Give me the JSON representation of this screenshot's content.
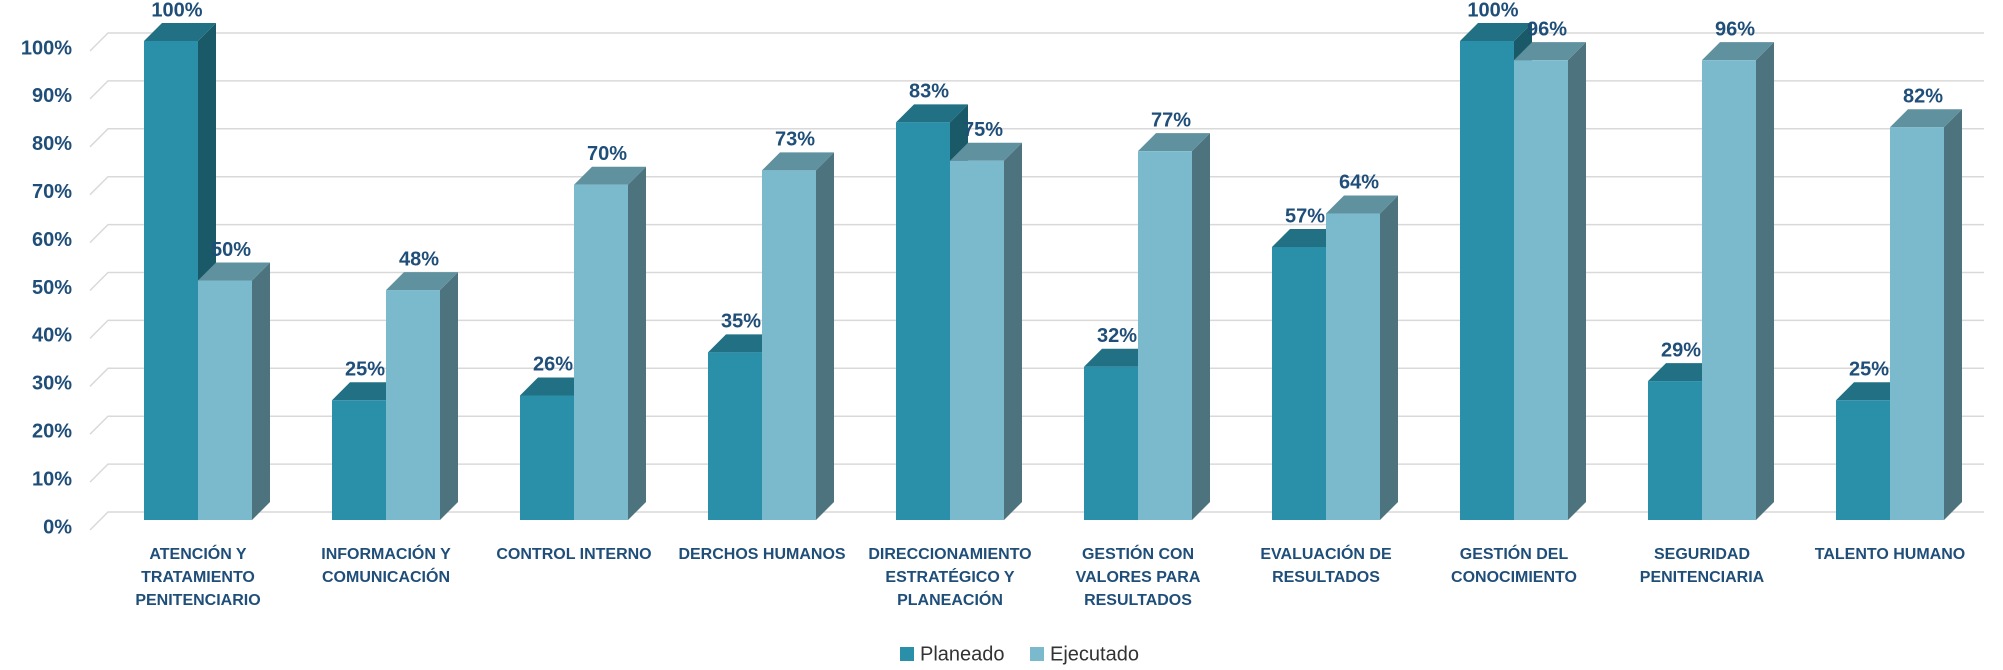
{
  "chart_data": {
    "type": "bar3d",
    "categories": [
      [
        "ATENCIÓN Y",
        "TRATAMIENTO",
        "PENITENCIARIO"
      ],
      [
        "INFORMACIÓN Y",
        "COMUNICACIÓN"
      ],
      [
        "CONTROL INTERNO"
      ],
      [
        "DERCHOS HUMANOS"
      ],
      [
        "DIRECCIONAMIENTO",
        "ESTRATÉGICO Y",
        "PLANEACIÓN"
      ],
      [
        "GESTIÓN CON",
        "VALORES PARA",
        "RESULTADOS"
      ],
      [
        "EVALUACIÓN DE",
        "RESULTADOS"
      ],
      [
        "GESTIÓN DEL",
        "CONOCIMIENTO"
      ],
      [
        "SEGURIDAD",
        "PENITENCIARIA"
      ],
      [
        "TALENTO HUMANO"
      ]
    ],
    "series": [
      {
        "name": "Planeado",
        "color": "#2a8fa8",
        "values": [
          100,
          25,
          26,
          35,
          83,
          32,
          57,
          100,
          29,
          25
        ],
        "value_labels": [
          "100%",
          "25%",
          "26%",
          "35%",
          "83%",
          "32%",
          "57%",
          "100%",
          "29%",
          "25%"
        ]
      },
      {
        "name": "Ejecutado",
        "color": "#7bbacc",
        "values": [
          50,
          48,
          70,
          73,
          75,
          77,
          64,
          96,
          96,
          82
        ],
        "value_labels": [
          "50%",
          "48%",
          "70%",
          "73%",
          "75%",
          "77%",
          "64%",
          "96%",
          "96%",
          "82%"
        ]
      }
    ],
    "ylim": [
      0,
      100
    ],
    "yticks": [
      {
        "value": 0,
        "label": "0%"
      },
      {
        "value": 10,
        "label": "10%"
      },
      {
        "value": 20,
        "label": "20%"
      },
      {
        "value": 30,
        "label": "30%"
      },
      {
        "value": 40,
        "label": "40%"
      },
      {
        "value": 50,
        "label": "50%"
      },
      {
        "value": 60,
        "label": "60%"
      },
      {
        "value": 70,
        "label": "70%"
      },
      {
        "value": 80,
        "label": "80%"
      },
      {
        "value": 90,
        "label": "90%"
      },
      {
        "value": 100,
        "label": "100%"
      }
    ],
    "grid": true,
    "legend": "bottom"
  }
}
